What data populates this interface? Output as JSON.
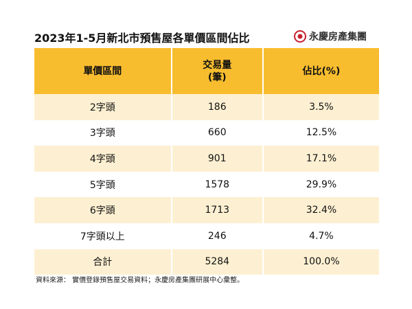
{
  "header": {
    "title": "2023年1-5月新北市預售屋各單價區間佔比",
    "logo": "永慶房產集團"
  },
  "table": {
    "columns": [
      "單價區間",
      "交易量\n(筆)",
      "佔比(%)"
    ],
    "rows": [
      [
        "2字頭",
        "186",
        "3.5%"
      ],
      [
        "3字頭",
        "660",
        "12.5%"
      ],
      [
        "4字頭",
        "901",
        "17.1%"
      ],
      [
        "5字頭",
        "1578",
        "29.9%"
      ],
      [
        "6字頭",
        "1713",
        "32.4%"
      ],
      [
        "7字頭以上",
        "246",
        "4.7%"
      ],
      [
        "合計",
        "5284",
        "100.0%"
      ]
    ]
  },
  "footer": {
    "source": "資料來源： 實價登錄預售屋交易資料；永慶房產集團研展中心彙整。"
  }
}
